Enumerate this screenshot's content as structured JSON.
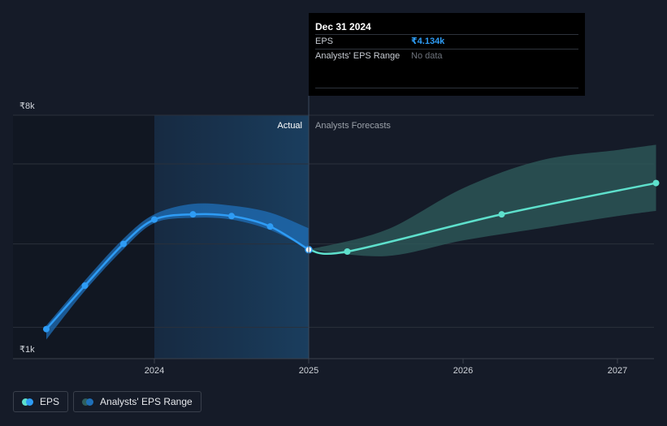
{
  "chart_data": {
    "type": "line",
    "y_tick_labels": [
      "₹8k",
      "₹1k"
    ],
    "x_tick_labels": [
      "2024",
      "2025",
      "2026",
      "2027"
    ],
    "region_labels": {
      "actual": "Actual",
      "forecast": "Analysts Forecasts"
    },
    "ylim": [
      1000,
      8000
    ],
    "series": [
      {
        "name": "EPS",
        "kind": "actual",
        "color": "#2e9cf5",
        "x": [
          2023.3,
          2023.55,
          2023.8,
          2024.0,
          2024.25,
          2024.5,
          2024.75,
          2025.0
        ],
        "values": [
          1850,
          3100,
          4300,
          5000,
          5150,
          5100,
          4800,
          4134
        ]
      },
      {
        "name": "EPS",
        "kind": "forecast",
        "color": "#5ee0cc",
        "x": [
          2025.0,
          2025.25,
          2026.25,
          2027.25
        ],
        "values": [
          4134,
          4080,
          5150,
          6050
        ]
      }
    ],
    "range_band": {
      "name": "Analysts' EPS Range",
      "actual": {
        "x": [
          2023.3,
          2023.55,
          2023.8,
          2024.0,
          2024.25,
          2024.5,
          2024.75,
          2025.0
        ],
        "high": [
          1950,
          3250,
          4450,
          5150,
          5450,
          5400,
          5200,
          4750
        ],
        "low": [
          1550,
          2950,
          4150,
          4900,
          5050,
          5000,
          4700,
          4150
        ]
      },
      "forecast": {
        "x": [
          2025.0,
          2025.5,
          2026.0,
          2026.5,
          2027.0,
          2027.25
        ],
        "high": [
          4134,
          4700,
          5900,
          6700,
          7000,
          7150
        ],
        "low": [
          4134,
          3950,
          4400,
          4750,
          5100,
          5250
        ]
      }
    },
    "grid": true,
    "legend_position": "bottom-left"
  },
  "tooltip": {
    "date": "Dec 31 2024",
    "eps_label": "EPS",
    "eps_value": "₹4.134k",
    "range_label": "Analysts' EPS Range",
    "range_value": "No data"
  },
  "legend": {
    "eps_label": "EPS",
    "range_label": "Analysts' EPS Range"
  },
  "colors": {
    "background": "#151b28",
    "eps_actual": "#2e9cf5",
    "eps_forecast": "#5ee0cc",
    "actual_band": "#1f6fb8",
    "forecast_band": "#2f5e5c"
  }
}
